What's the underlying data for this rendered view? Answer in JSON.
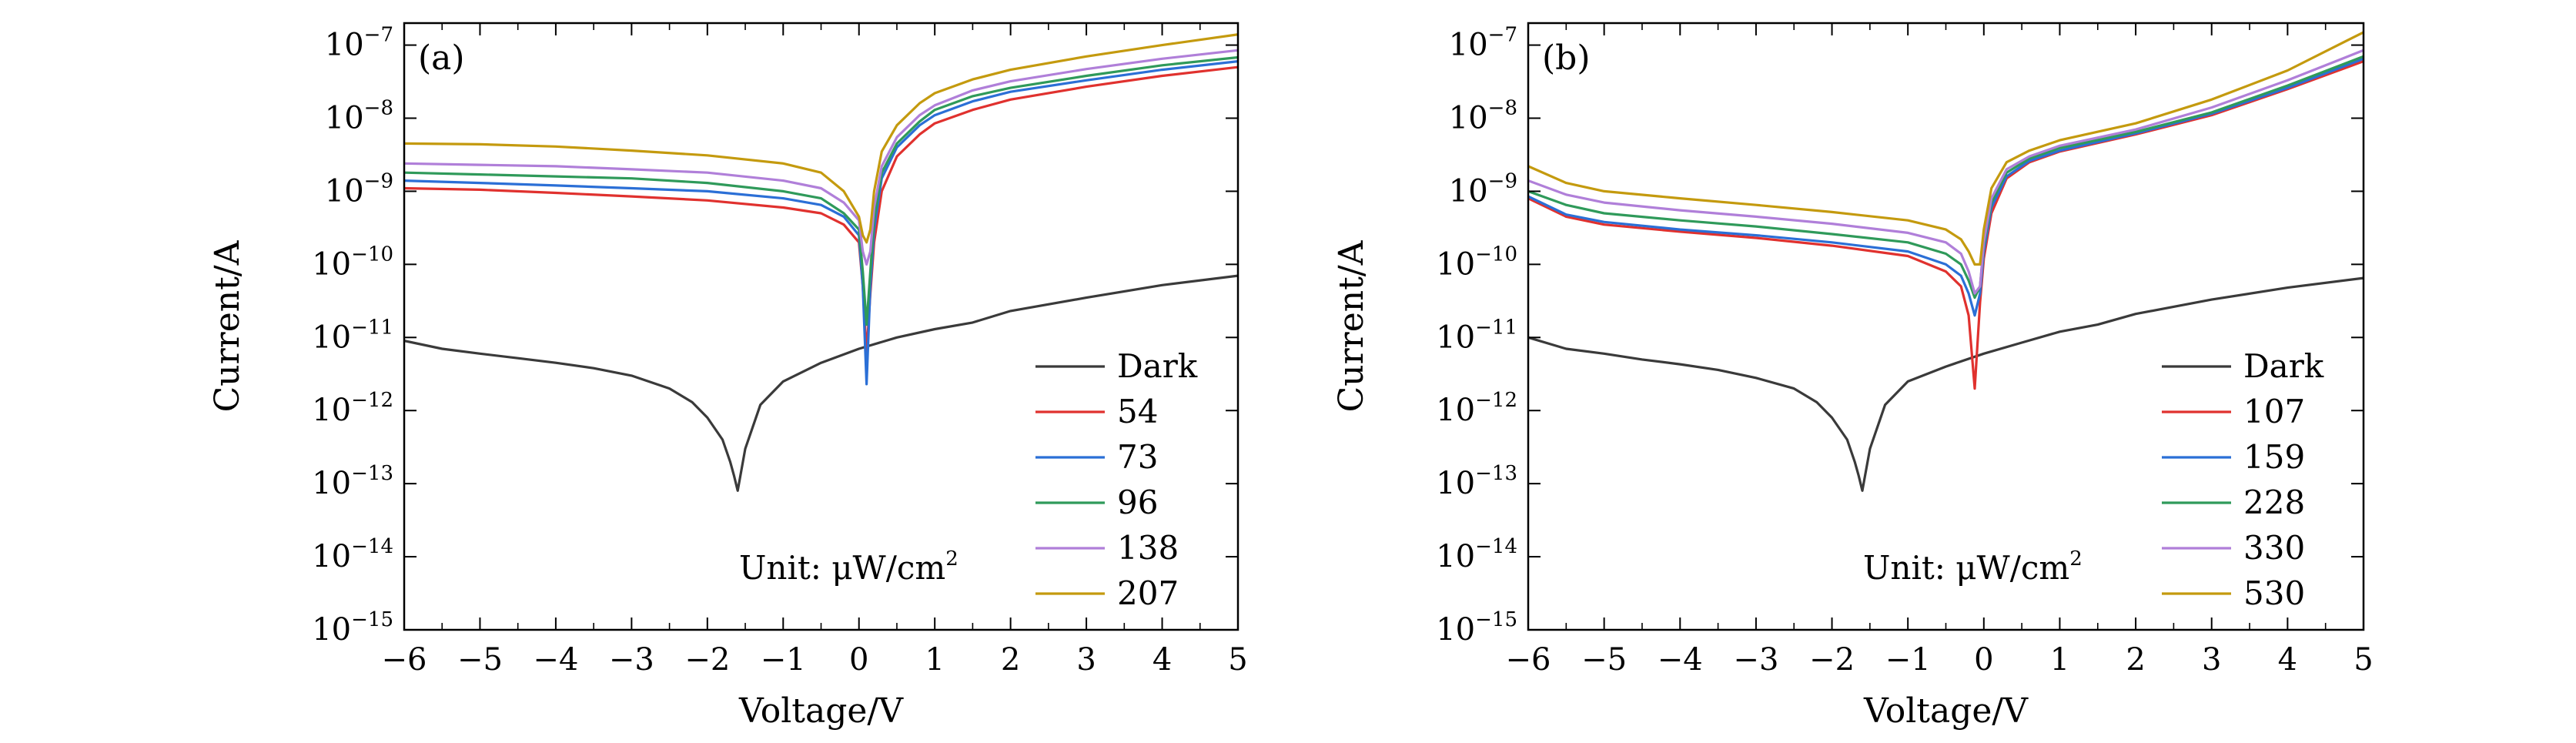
{
  "chart_data": [
    {
      "type": "line",
      "panel_label": "(a)",
      "xlabel": "Voltage/V",
      "ylabel": "Current/A",
      "xlim": [
        -6,
        5
      ],
      "ylim": [
        1e-15,
        2e-07
      ],
      "yscale": "log",
      "xticks": [
        -6,
        -5,
        -4,
        -3,
        -2,
        -1,
        0,
        1,
        2,
        3,
        4,
        5
      ],
      "xtick_labels": [
        "−6",
        "−5",
        "−4",
        "−3",
        "−2",
        "−1",
        "0",
        "1",
        "2",
        "3",
        "4",
        "5"
      ],
      "ytick_exponents": [
        -15,
        -14,
        -13,
        -12,
        -11,
        -10,
        -9,
        -8,
        -7
      ],
      "ytick_base": "10",
      "ytick_exponent_labels": [
        "−15",
        "−14",
        "−13",
        "−12",
        "−11",
        "−10",
        "−9",
        "−8",
        "−7"
      ],
      "annotation": "Unit: μW/cm",
      "annotation_superscript": "2",
      "legend_position": "bottom-right",
      "series": [
        {
          "name": "Dark",
          "color": "#3a3a3a",
          "x": [
            -6,
            -5.5,
            -5,
            -4.5,
            -4,
            -3.5,
            -3,
            -2.5,
            -2.2,
            -2,
            -1.8,
            -1.7,
            -1.65,
            -1.6,
            -1.5,
            -1.3,
            -1,
            -0.5,
            0,
            0.5,
            1,
            1.5,
            2,
            3,
            4,
            5
          ],
          "y": [
            9e-12,
            7e-12,
            6e-12,
            5.2e-12,
            4.5e-12,
            3.8e-12,
            3e-12,
            2e-12,
            1.3e-12,
            8e-13,
            4e-13,
            2e-13,
            1.3e-13,
            8e-14,
            3e-13,
            1.2e-12,
            2.5e-12,
            4.5e-12,
            7e-12,
            1e-11,
            1.3e-11,
            1.6e-11,
            2.3e-11,
            3.5e-11,
            5.2e-11,
            7e-11
          ]
        },
        {
          "name": "54",
          "color": "#e0312e",
          "x": [
            -6,
            -5,
            -4,
            -3,
            -2,
            -1,
            -0.5,
            -0.2,
            0,
            0.05,
            0.1,
            0.15,
            0.2,
            0.3,
            0.5,
            0.8,
            1,
            1.5,
            2,
            3,
            4,
            5
          ],
          "y": [
            1.1e-09,
            1.05e-09,
            9.5e-10,
            8.5e-10,
            7.5e-10,
            6e-10,
            5e-10,
            3.5e-10,
            2e-10,
            5e-11,
            6e-12,
            4e-11,
            2e-10,
            1e-09,
            3e-09,
            6e-09,
            8.5e-09,
            1.3e-08,
            1.8e-08,
            2.7e-08,
            3.8e-08,
            5e-08
          ]
        },
        {
          "name": "73",
          "color": "#2b6fd6",
          "x": [
            -6,
            -5,
            -4,
            -3,
            -2,
            -1,
            -0.5,
            -0.2,
            0,
            0.05,
            0.1,
            0.15,
            0.2,
            0.3,
            0.5,
            0.8,
            1,
            1.5,
            2,
            3,
            4,
            5
          ],
          "y": [
            1.4e-09,
            1.3e-09,
            1.2e-09,
            1.1e-09,
            1e-09,
            8e-10,
            6.5e-10,
            4.5e-10,
            2.5e-10,
            5e-11,
            2.3e-12,
            5e-11,
            3e-10,
            1.5e-09,
            4e-09,
            8e-09,
            1.1e-08,
            1.7e-08,
            2.3e-08,
            3.3e-08,
            4.6e-08,
            6e-08
          ]
        },
        {
          "name": "96",
          "color": "#2f9a5a",
          "x": [
            -6,
            -5,
            -4,
            -3,
            -2,
            -1,
            -0.5,
            -0.2,
            0,
            0.05,
            0.1,
            0.15,
            0.2,
            0.3,
            0.5,
            0.8,
            1,
            1.5,
            2,
            3,
            4,
            5
          ],
          "y": [
            1.8e-09,
            1.7e-09,
            1.6e-09,
            1.5e-09,
            1.3e-09,
            1e-09,
            8e-10,
            5e-10,
            3e-10,
            8e-11,
            1.5e-11,
            8e-11,
            4e-10,
            1.8e-09,
            4.5e-09,
            9e-09,
            1.3e-08,
            2e-08,
            2.6e-08,
            3.8e-08,
            5.3e-08,
            6.8e-08
          ]
        },
        {
          "name": "138",
          "color": "#b07fd9",
          "x": [
            -6,
            -5,
            -4,
            -3,
            -2,
            -1,
            -0.5,
            -0.2,
            0,
            0.05,
            0.1,
            0.15,
            0.2,
            0.3,
            0.5,
            0.8,
            1,
            1.5,
            2,
            3,
            4,
            5
          ],
          "y": [
            2.4e-09,
            2.3e-09,
            2.2e-09,
            2e-09,
            1.8e-09,
            1.4e-09,
            1.1e-09,
            7e-10,
            4e-10,
            1.5e-10,
            1e-10,
            1.5e-10,
            6e-10,
            2.2e-09,
            5.5e-09,
            1.1e-08,
            1.5e-08,
            2.4e-08,
            3.2e-08,
            4.7e-08,
            6.5e-08,
            8.5e-08
          ]
        },
        {
          "name": "207",
          "color": "#c49a0e",
          "x": [
            -6,
            -5,
            -4,
            -3,
            -2,
            -1,
            -0.5,
            -0.2,
            0,
            0.05,
            0.1,
            0.15,
            0.2,
            0.3,
            0.5,
            0.8,
            1,
            1.5,
            2,
            3,
            4,
            5
          ],
          "y": [
            4.5e-09,
            4.4e-09,
            4.1e-09,
            3.6e-09,
            3.1e-09,
            2.4e-09,
            1.8e-09,
            1e-09,
            4.5e-10,
            2.5e-10,
            2e-10,
            3e-10,
            1e-09,
            3.5e-09,
            8e-09,
            1.6e-08,
            2.2e-08,
            3.4e-08,
            4.6e-08,
            7e-08,
            1e-07,
            1.4e-07
          ]
        }
      ]
    },
    {
      "type": "line",
      "panel_label": "(b)",
      "xlabel": "Voltage/V",
      "ylabel": "Current/A",
      "xlim": [
        -6,
        5
      ],
      "ylim": [
        1e-15,
        2e-07
      ],
      "yscale": "log",
      "xticks": [
        -6,
        -5,
        -4,
        -3,
        -2,
        -1,
        0,
        1,
        2,
        3,
        4,
        5
      ],
      "xtick_labels": [
        "−6",
        "−5",
        "−4",
        "−3",
        "−2",
        "−1",
        "0",
        "1",
        "2",
        "3",
        "4",
        "5"
      ],
      "ytick_exponents": [
        -15,
        -14,
        -13,
        -12,
        -11,
        -10,
        -9,
        -8,
        -7
      ],
      "ytick_base": "10",
      "ytick_exponent_labels": [
        "−15",
        "−14",
        "−13",
        "−12",
        "−11",
        "−10",
        "−9",
        "−8",
        "−7"
      ],
      "annotation": "Unit: μW/cm",
      "annotation_superscript": "2",
      "legend_position": "bottom-right",
      "series": [
        {
          "name": "Dark",
          "color": "#3a3a3a",
          "x": [
            -6,
            -5.5,
            -5,
            -4.5,
            -4,
            -3.5,
            -3,
            -2.5,
            -2.2,
            -2,
            -1.8,
            -1.7,
            -1.65,
            -1.6,
            -1.5,
            -1.3,
            -1,
            -0.5,
            0,
            0.5,
            1,
            1.5,
            2,
            3,
            4,
            5
          ],
          "y": [
            1e-11,
            7e-12,
            6e-12,
            5e-12,
            4.3e-12,
            3.6e-12,
            2.8e-12,
            2e-12,
            1.3e-12,
            8e-13,
            4e-13,
            2e-13,
            1.3e-13,
            8e-14,
            3e-13,
            1.2e-12,
            2.5e-12,
            4e-12,
            6e-12,
            8.5e-12,
            1.2e-11,
            1.5e-11,
            2.1e-11,
            3.3e-11,
            4.8e-11,
            6.5e-11
          ]
        },
        {
          "name": "107",
          "color": "#e0312e",
          "x": [
            -6,
            -5.5,
            -5,
            -4,
            -3,
            -2,
            -1,
            -0.5,
            -0.3,
            -0.2,
            -0.12,
            -0.05,
            0,
            0.1,
            0.3,
            0.6,
            1,
            2,
            3,
            4,
            5
          ],
          "y": [
            8e-10,
            4.5e-10,
            3.5e-10,
            2.8e-10,
            2.3e-10,
            1.8e-10,
            1.3e-10,
            8e-11,
            5e-11,
            2e-11,
            2e-12,
            3e-11,
            1.2e-10,
            5e-10,
            1.5e-09,
            2.5e-09,
            3.5e-09,
            6e-09,
            1.1e-08,
            2.5e-08,
            6e-08
          ]
        },
        {
          "name": "159",
          "color": "#2b6fd6",
          "x": [
            -6,
            -5.5,
            -5,
            -4,
            -3,
            -2,
            -1,
            -0.5,
            -0.3,
            -0.2,
            -0.12,
            -0.05,
            0,
            0.1,
            0.3,
            0.6,
            1,
            2,
            3,
            4,
            5
          ],
          "y": [
            8.5e-10,
            4.8e-10,
            3.8e-10,
            3e-10,
            2.5e-10,
            2e-10,
            1.5e-10,
            1e-10,
            7e-11,
            4e-11,
            2e-11,
            4e-11,
            1.5e-10,
            6e-10,
            1.6e-09,
            2.6e-09,
            3.6e-09,
            6.2e-09,
            1.15e-08,
            2.6e-08,
            6.5e-08
          ]
        },
        {
          "name": "228",
          "color": "#2f9a5a",
          "x": [
            -6,
            -5.5,
            -5,
            -4,
            -3,
            -2,
            -1,
            -0.5,
            -0.3,
            -0.2,
            -0.12,
            -0.05,
            0,
            0.1,
            0.3,
            0.6,
            1,
            2,
            3,
            4,
            5
          ],
          "y": [
            1e-09,
            6.5e-10,
            5e-10,
            4e-10,
            3.3e-10,
            2.6e-10,
            2e-10,
            1.4e-10,
            1e-10,
            6e-11,
            3.5e-11,
            5e-11,
            1.8e-10,
            7e-10,
            1.8e-09,
            2.8e-09,
            3.9e-09,
            6.5e-09,
            1.2e-08,
            2.8e-08,
            7e-08
          ]
        },
        {
          "name": "330",
          "color": "#b07fd9",
          "x": [
            -6,
            -5.5,
            -5,
            -4,
            -3,
            -2,
            -1,
            -0.5,
            -0.3,
            -0.2,
            -0.12,
            -0.05,
            0,
            0.1,
            0.3,
            0.6,
            1,
            2,
            3,
            4,
            5
          ],
          "y": [
            1.4e-09,
            9e-10,
            7e-10,
            5.5e-10,
            4.5e-10,
            3.6e-10,
            2.7e-10,
            2e-10,
            1.4e-10,
            8e-11,
            4e-11,
            5e-11,
            2e-10,
            8e-10,
            2e-09,
            3e-09,
            4.2e-09,
            7e-09,
            1.4e-08,
            3.3e-08,
            8.5e-08
          ]
        },
        {
          "name": "530",
          "color": "#c49a0e",
          "x": [
            -6,
            -5.5,
            -5,
            -4,
            -3,
            -2,
            -1,
            -0.5,
            -0.3,
            -0.2,
            -0.12,
            -0.05,
            0,
            0.1,
            0.3,
            0.6,
            1,
            2,
            3,
            4,
            5
          ],
          "y": [
            2.2e-09,
            1.3e-09,
            1e-09,
            8e-10,
            6.5e-10,
            5.2e-10,
            4e-10,
            3e-10,
            2.2e-10,
            1.5e-10,
            1e-10,
            1e-10,
            3e-10,
            1.1e-09,
            2.5e-09,
            3.6e-09,
            5e-09,
            8.5e-09,
            1.8e-08,
            4.5e-08,
            1.5e-07
          ]
        }
      ]
    }
  ]
}
